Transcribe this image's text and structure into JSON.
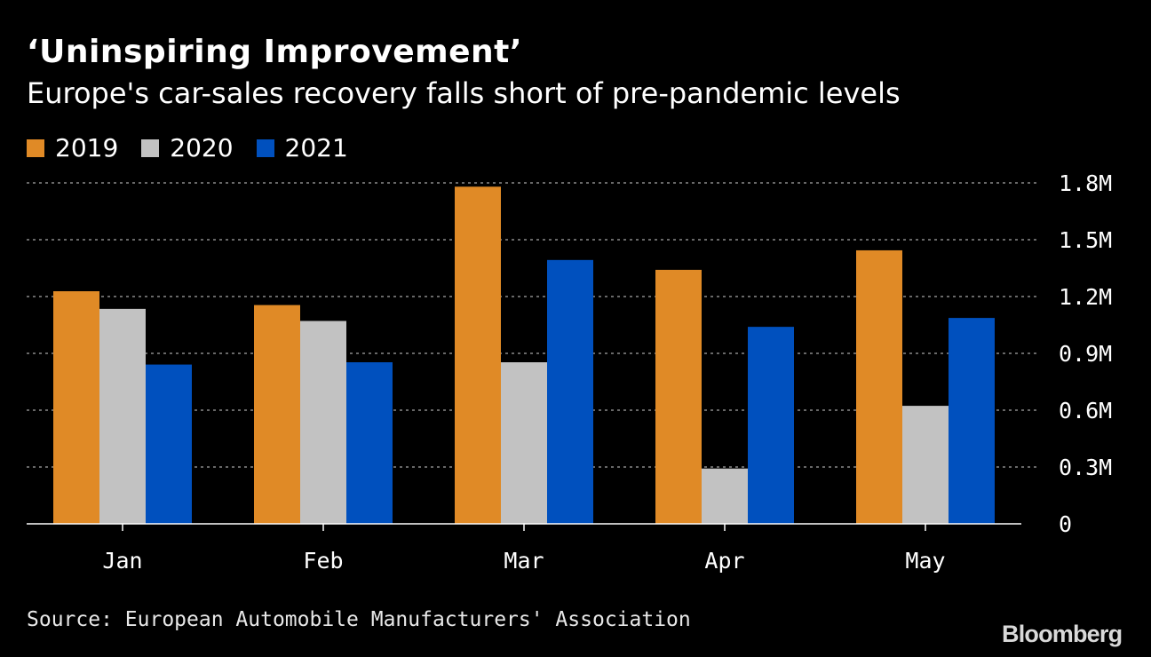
{
  "header": {
    "title": "‘Uninspiring Improvement’",
    "subtitle": "Europe's car-sales recovery falls short of pre-pandemic levels"
  },
  "legend": [
    {
      "label": "2019",
      "color": "#E08A26"
    },
    {
      "label": "2020",
      "color": "#C2C2C2"
    },
    {
      "label": "2021",
      "color": "#0050BE"
    }
  ],
  "chart_data": {
    "type": "bar",
    "categories": [
      "Jan",
      "Feb",
      "Mar",
      "Apr",
      "May"
    ],
    "series": [
      {
        "name": "2019",
        "color": "#E08A26",
        "values": [
          1228000,
          1155000,
          1780000,
          1341000,
          1444000
        ]
      },
      {
        "name": "2020",
        "color": "#C2C2C2",
        "values": [
          1135000,
          1071000,
          853000,
          292000,
          623000
        ]
      },
      {
        "name": "2021",
        "color": "#0050BE",
        "values": [
          841000,
          853000,
          1393000,
          1040000,
          1087000
        ]
      }
    ],
    "ylim": [
      0,
      1800000
    ],
    "yticks": [
      0,
      300000,
      600000,
      900000,
      1200000,
      1500000,
      1800000
    ],
    "ytick_labels": [
      "0",
      "0.3M",
      "0.6M",
      "0.9M",
      "1.2M",
      "1.5M",
      "1.8M"
    ],
    "xlabel": "",
    "ylabel": "",
    "grid": true,
    "y_axis_position": "right",
    "legend_position": "top-left"
  },
  "footer": {
    "source": "Source: European Automobile Manufacturers' Association",
    "brand": "Bloomberg"
  }
}
